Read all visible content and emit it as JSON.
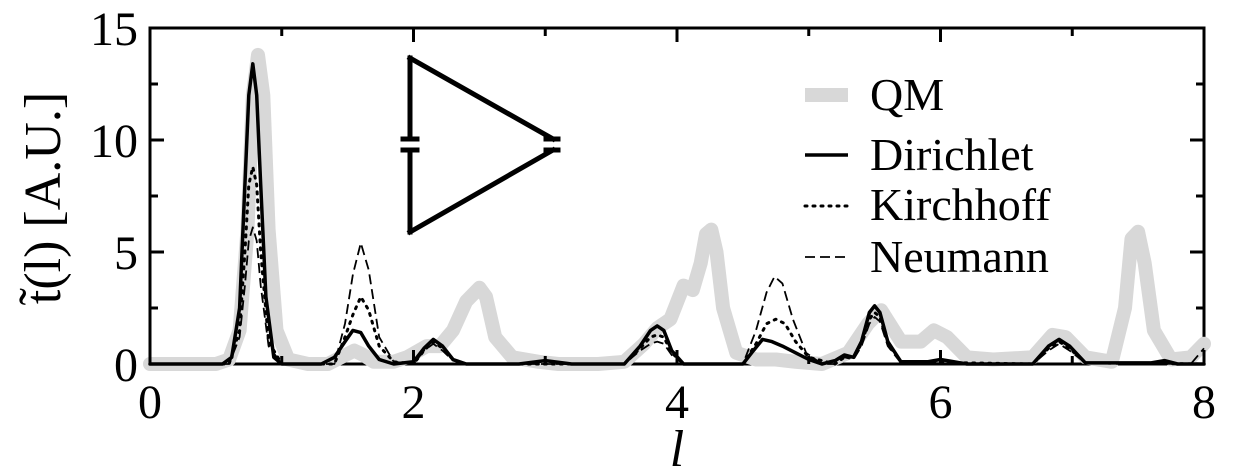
{
  "chart_data": {
    "type": "line",
    "xlabel": "l",
    "ylabel": "t̃(l) [A.U.]",
    "xlim": [
      0,
      8
    ],
    "ylim": [
      0,
      15
    ],
    "x_ticks": [
      0,
      2,
      4,
      6,
      8
    ],
    "y_ticks": [
      0,
      5,
      10,
      15
    ],
    "grid": false,
    "legend_position": "top-right",
    "colors": {
      "QM": "#d8d8d8",
      "Dirichlet": "#000000",
      "Kirchhoff": "#000000",
      "Neumann": "#000000"
    },
    "series": [
      {
        "name": "QM",
        "style": "thick-light-gray",
        "x": [
          0,
          0.5,
          0.6,
          0.68,
          0.74,
          0.78,
          0.82,
          0.86,
          0.9,
          0.96,
          1.05,
          1.2,
          1.35,
          1.45,
          1.55,
          1.62,
          1.7,
          1.85,
          1.95,
          2.1,
          2.2,
          2.3,
          2.4,
          2.5,
          2.55,
          2.62,
          2.75,
          2.95,
          3.1,
          3.4,
          3.6,
          3.75,
          3.85,
          3.95,
          4.05,
          4.12,
          4.18,
          4.22,
          4.26,
          4.3,
          4.35,
          4.45,
          4.6,
          4.75,
          4.9,
          5.1,
          5.3,
          5.45,
          5.55,
          5.7,
          5.85,
          5.95,
          6.05,
          6.2,
          6.4,
          6.7,
          6.85,
          6.95,
          7.1,
          7.3,
          7.4,
          7.45,
          7.5,
          7.55,
          7.62,
          7.75,
          7.9,
          8.0
        ],
        "y": [
          0,
          0,
          0.2,
          1.5,
          6,
          12,
          13.8,
          12,
          6,
          1.5,
          0.2,
          0,
          0,
          0.3,
          0.6,
          0.4,
          0.1,
          0.1,
          0.3,
          0.8,
          0.8,
          1.5,
          2.8,
          3.4,
          3.0,
          1.2,
          0.3,
          0.1,
          0,
          0,
          0.1,
          0.9,
          1.6,
          2.0,
          3.5,
          3.3,
          4.5,
          5.8,
          6.0,
          5.0,
          2.5,
          0.5,
          0.2,
          0.2,
          0.1,
          0,
          0.5,
          1.8,
          2.4,
          1.0,
          1.0,
          1.5,
          1.2,
          0.3,
          0.2,
          0.3,
          1.3,
          1.2,
          0.3,
          0.1,
          2.5,
          5.6,
          5.9,
          4.5,
          1.5,
          0.2,
          0.3,
          0.9
        ]
      },
      {
        "name": "Dirichlet",
        "style": "solid",
        "x": [
          0,
          0.55,
          0.62,
          0.68,
          0.72,
          0.75,
          0.78,
          0.81,
          0.84,
          0.88,
          0.94,
          1.0,
          1.3,
          1.4,
          1.48,
          1.54,
          1.6,
          1.66,
          1.74,
          1.85,
          2.0,
          2.08,
          2.15,
          2.22,
          2.3,
          2.4,
          2.8,
          3.0,
          3.2,
          3.6,
          3.72,
          3.8,
          3.85,
          3.9,
          3.96,
          4.05,
          4.5,
          4.58,
          4.65,
          4.72,
          4.8,
          4.9,
          5.0,
          5.1,
          5.2,
          5.27,
          5.34,
          5.4,
          5.46,
          5.5,
          5.54,
          5.6,
          5.7,
          5.9,
          6.0,
          6.2,
          6.7,
          6.82,
          6.9,
          6.98,
          7.1,
          7.6,
          7.7,
          7.8,
          8.0
        ],
        "y": [
          0,
          0,
          0.3,
          2.5,
          8,
          12,
          13.4,
          12,
          8,
          3,
          0.3,
          0,
          0,
          0.3,
          1.0,
          1.5,
          1.4,
          0.8,
          0.2,
          0,
          0.1,
          0.7,
          1.1,
          0.8,
          0.2,
          0,
          0,
          0.15,
          0,
          0,
          0.8,
          1.5,
          1.7,
          1.5,
          0.6,
          0,
          0,
          0.6,
          1.1,
          1.0,
          0.8,
          0.5,
          0.2,
          0,
          0.15,
          0.4,
          0.3,
          1.0,
          2.3,
          2.6,
          2.3,
          1.0,
          0.1,
          0.1,
          0.2,
          0,
          0,
          0.8,
          1.1,
          0.8,
          0.05,
          0.05,
          0.15,
          0,
          0
        ]
      },
      {
        "name": "Kirchhoff",
        "style": "dotted",
        "x": [
          0,
          0.6,
          0.68,
          0.72,
          0.75,
          0.78,
          0.81,
          0.84,
          0.9,
          1.0,
          1.4,
          1.48,
          1.54,
          1.6,
          1.66,
          1.74,
          1.85,
          2.0,
          2.08,
          2.15,
          2.22,
          2.3,
          2.4,
          3.6,
          3.72,
          3.8,
          3.85,
          3.9,
          3.96,
          4.05,
          4.5,
          4.6,
          4.68,
          4.75,
          4.82,
          4.9,
          5.0,
          5.2,
          5.27,
          5.34,
          5.4,
          5.46,
          5.5,
          5.54,
          5.6,
          5.7,
          6.7,
          6.82,
          6.9,
          6.98,
          7.1,
          8.0
        ],
        "y": [
          0,
          0,
          1.5,
          5,
          8,
          8.8,
          8,
          5,
          1.0,
          0,
          0,
          1.2,
          2.2,
          3.0,
          2.4,
          0.8,
          0.1,
          0,
          0.6,
          1.0,
          0.7,
          0.2,
          0,
          0,
          0.7,
          1.2,
          1.3,
          1.2,
          0.5,
          0,
          0,
          0.9,
          1.8,
          2.0,
          1.8,
          1.0,
          0.3,
          0,
          0.3,
          0.3,
          0.9,
          2.0,
          2.3,
          2.1,
          0.9,
          0.1,
          0,
          0.7,
          1.0,
          0.7,
          0.05,
          0
        ]
      },
      {
        "name": "Neumann",
        "style": "dashed",
        "x": [
          0,
          0.6,
          0.68,
          0.72,
          0.75,
          0.78,
          0.81,
          0.84,
          0.9,
          1.0,
          1.4,
          1.48,
          1.54,
          1.6,
          1.66,
          1.74,
          1.85,
          2.0,
          2.08,
          2.15,
          2.22,
          2.3,
          2.4,
          3.6,
          3.72,
          3.8,
          3.85,
          3.9,
          3.96,
          4.05,
          4.5,
          4.6,
          4.68,
          4.74,
          4.8,
          4.88,
          4.98,
          5.1,
          5.2,
          5.27,
          5.34,
          5.4,
          5.46,
          5.5,
          5.54,
          5.6,
          5.7,
          6.7,
          6.82,
          6.9,
          6.98,
          7.1,
          7.9,
          8.0
        ],
        "y": [
          0,
          0,
          1.2,
          3.5,
          5.5,
          6.1,
          5.5,
          3.5,
          0.8,
          0,
          0,
          1.8,
          4.0,
          5.4,
          4.2,
          1.2,
          0.1,
          0,
          0.6,
          0.9,
          0.6,
          0.15,
          0,
          0,
          0.6,
          0.9,
          1.0,
          0.9,
          0.4,
          0,
          0,
          1.5,
          3.2,
          3.9,
          3.6,
          2.0,
          0.5,
          0,
          0,
          0.3,
          0.2,
          0.8,
          1.8,
          2.1,
          1.9,
          0.8,
          0.05,
          0,
          0.6,
          0.9,
          0.6,
          0.05,
          0,
          0.7
        ]
      }
    ],
    "inset": {
      "shape": "triangle-graph-icon",
      "description_visible": false
    }
  }
}
